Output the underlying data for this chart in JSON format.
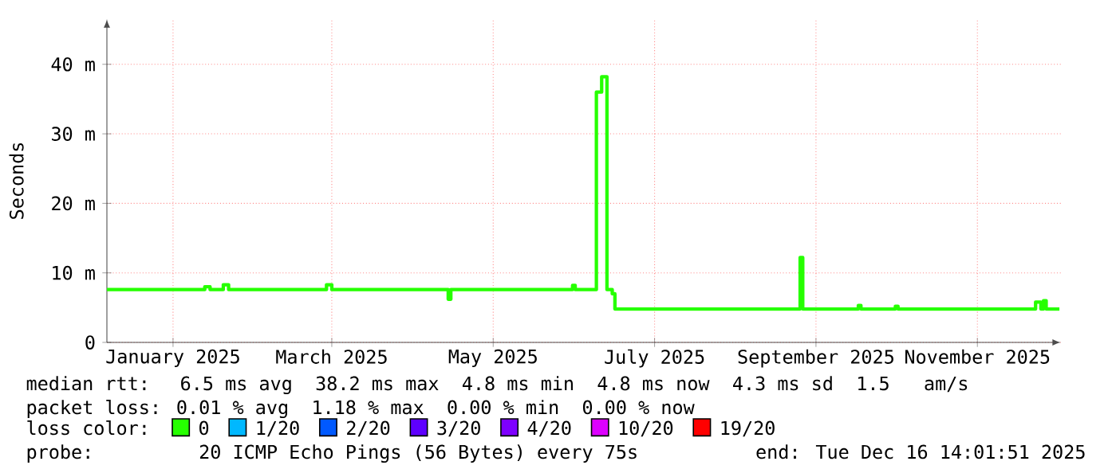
{
  "chart_data": {
    "type": "step",
    "ylabel": "Seconds",
    "x": [
      "2024-12-21",
      "2025-01-26",
      "2025-01-27",
      "2025-01-29",
      "2025-02-03",
      "2025-02-05",
      "2025-03-13",
      "2025-03-14",
      "2025-03-16",
      "2025-04-28",
      "2025-04-29",
      "2025-04-30",
      "2025-06-14",
      "2025-06-15",
      "2025-06-16",
      "2025-06-24",
      "2025-06-26",
      "2025-06-28",
      "2025-06-30",
      "2025-07-01",
      "2025-09-08",
      "2025-09-09",
      "2025-09-10",
      "2025-09-30",
      "2025-10-01",
      "2025-10-02",
      "2025-10-14",
      "2025-10-15",
      "2025-10-16",
      "2025-12-06",
      "2025-12-07",
      "2025-12-09",
      "2025-12-10",
      "2025-12-11",
      "2025-12-16"
    ],
    "series": [
      {
        "name": "0",
        "color": "#26ff00",
        "values": [
          7.6,
          7.6,
          8.0,
          7.6,
          8.3,
          7.6,
          7.6,
          8.3,
          7.6,
          7.6,
          6.2,
          7.6,
          7.6,
          8.2,
          7.6,
          36.0,
          38.2,
          7.6,
          7.0,
          4.8,
          4.8,
          12.2,
          4.8,
          4.8,
          5.3,
          4.8,
          4.8,
          5.2,
          4.8,
          4.8,
          5.8,
          4.8,
          6.0,
          4.8,
          4.8
        ]
      },
      {
        "name": "1/20",
        "color": "#00b8ff",
        "values": [
          null,
          null,
          null,
          null,
          null,
          null,
          null,
          null,
          null,
          null,
          null,
          null,
          null,
          null,
          null,
          null,
          null,
          null,
          null,
          null,
          null,
          null,
          null,
          null,
          null,
          null,
          null,
          null,
          null,
          null,
          null,
          null,
          null,
          null,
          null
        ]
      },
      {
        "name": "2/20",
        "color": "#0059ff",
        "values": [
          null,
          null,
          null,
          null,
          null,
          null,
          null,
          null,
          null,
          null,
          null,
          null,
          null,
          null,
          null,
          null,
          null,
          null,
          null,
          null,
          null,
          null,
          null,
          null,
          null,
          null,
          null,
          null,
          null,
          null,
          null,
          null,
          null,
          null,
          null
        ]
      },
      {
        "name": "3/20",
        "color": "#5e00ff",
        "values": [
          null,
          null,
          null,
          null,
          null,
          null,
          null,
          null,
          null,
          null,
          null,
          null,
          null,
          null,
          null,
          null,
          null,
          null,
          null,
          null,
          null,
          null,
          null,
          null,
          null,
          null,
          null,
          null,
          null,
          null,
          null,
          null,
          null,
          null,
          null
        ]
      },
      {
        "name": "4/20",
        "color": "#7e00ff",
        "values": [
          null,
          null,
          null,
          null,
          null,
          null,
          null,
          null,
          null,
          null,
          null,
          null,
          null,
          null,
          null,
          null,
          null,
          null,
          null,
          null,
          null,
          null,
          null,
          null,
          null,
          null,
          null,
          null,
          null,
          null,
          null,
          null,
          null,
          null,
          null
        ]
      },
      {
        "name": "10/20",
        "color": "#dd00ff",
        "values": [
          null,
          null,
          null,
          null,
          null,
          null,
          null,
          null,
          null,
          null,
          null,
          null,
          null,
          null,
          null,
          null,
          null,
          null,
          null,
          null,
          null,
          null,
          null,
          null,
          null,
          null,
          null,
          null,
          null,
          null,
          null,
          null,
          null,
          null,
          null
        ]
      },
      {
        "name": "19/20",
        "color": "#ff0000",
        "values": [
          null,
          null,
          null,
          null,
          null,
          null,
          null,
          null,
          null,
          null,
          null,
          null,
          null,
          null,
          null,
          null,
          null,
          null,
          null,
          null,
          null,
          null,
          null,
          null,
          null,
          null,
          null,
          null,
          null,
          null,
          null,
          null,
          null,
          null,
          null
        ]
      }
    ],
    "xlim": [
      "2024-12-21",
      "2025-12-16T14:01"
    ],
    "xticks": [
      {
        "value": "2025-01-15",
        "label": "January 2025"
      },
      {
        "value": "2025-03-16",
        "label": "March 2025"
      },
      {
        "value": "2025-05-16",
        "label": "May 2025"
      },
      {
        "value": "2025-07-16",
        "label": "July 2025"
      },
      {
        "value": "2025-09-15",
        "label": "September 2025"
      },
      {
        "value": "2025-11-15",
        "label": "November 2025"
      }
    ],
    "ylim": [
      0,
      46.5
    ],
    "yticks": [
      {
        "value": 0,
        "label": "0"
      },
      {
        "value": 10,
        "label": "10 m"
      },
      {
        "value": 20,
        "label": "20 m"
      },
      {
        "value": 30,
        "label": "30 m"
      },
      {
        "value": 40,
        "label": "40 m"
      }
    ],
    "grid": true,
    "legend": "bottom",
    "legend_title": "loss color:",
    "annotations": [
      "median rtt:  6.5 ms avg  38.2 ms max  4.8 ms min  4.8 ms now  4.3 ms sd  1.5   am/s",
      "packet loss: 0.01 % avg  1.18 % max  0.00 % min  0.00 % now",
      "probe:       20 ICMP Echo Pings (56 Bytes) every 75s",
      "end: Tue Dec 16 14:01:51 2025"
    ]
  }
}
